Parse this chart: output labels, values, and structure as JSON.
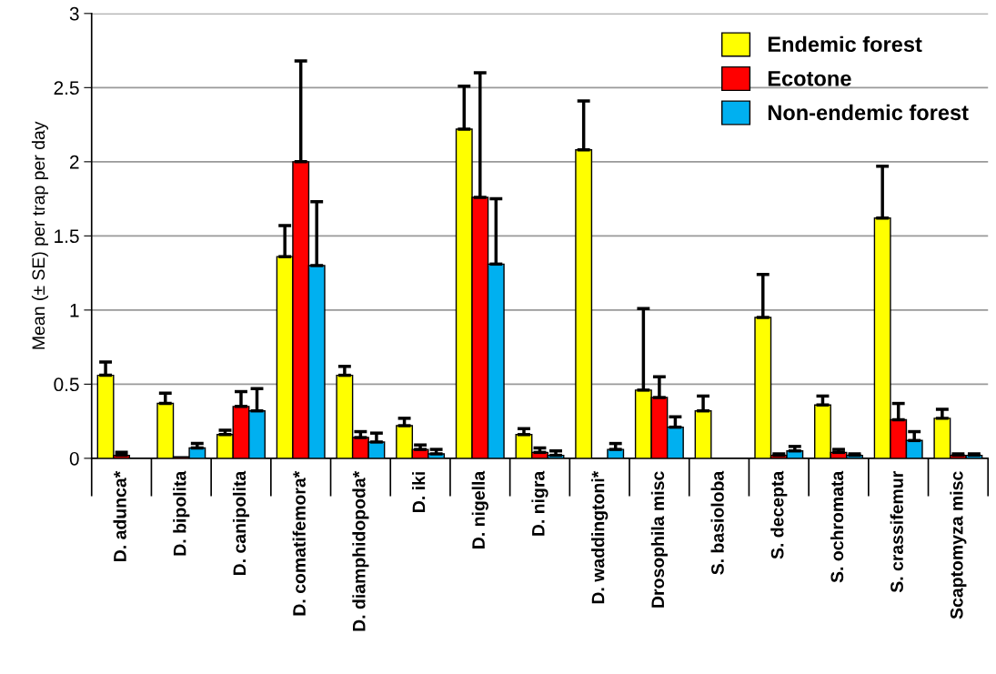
{
  "chart_data": {
    "type": "bar",
    "ylabel": "Mean (± SE) per trap per day",
    "categories": [
      "D. adunca*",
      "D. bipolita",
      "D. canipolita",
      "D. comatifemora*",
      "D. diamphidopoda*",
      "D. iki",
      "D. nigella",
      "D. nigra",
      "D. waddingtoni*",
      "Drosophila misc",
      "S. basioloba",
      "S. decepta",
      "S. ochromata",
      "S. crassifemur",
      "Scaptomyza misc"
    ],
    "series": [
      {
        "name": "Endemic forest",
        "color": "#ffff00",
        "values": [
          0.56,
          0.37,
          0.16,
          1.36,
          0.56,
          0.22,
          2.22,
          0.16,
          2.08,
          0.46,
          0.32,
          0.95,
          0.36,
          1.62,
          0.27
        ],
        "errors": [
          [
            0.56,
            0.65
          ],
          [
            0.37,
            0.44
          ],
          [
            0.16,
            0.19
          ],
          [
            1.36,
            1.57
          ],
          [
            0.56,
            0.62
          ],
          [
            0.22,
            0.27
          ],
          [
            2.22,
            2.51
          ],
          [
            0.16,
            0.2
          ],
          [
            2.08,
            2.41
          ],
          [
            0.46,
            1.01
          ],
          [
            0.32,
            0.42
          ],
          [
            0.95,
            1.24
          ],
          [
            0.36,
            0.42
          ],
          [
            1.62,
            1.97
          ],
          [
            0.27,
            0.33
          ]
        ]
      },
      {
        "name": "Ecotone",
        "color": "#ff0000",
        "values": [
          0.02,
          0.01,
          0.35,
          2.0,
          0.14,
          0.06,
          1.76,
          0.04,
          null,
          0.41,
          null,
          0.02,
          0.04,
          0.26,
          0.02
        ],
        "errors": [
          [
            0.02,
            0.04
          ],
          null,
          [
            0.35,
            0.45
          ],
          [
            2.0,
            2.68
          ],
          [
            0.14,
            0.18
          ],
          [
            0.06,
            0.09
          ],
          [
            1.76,
            2.6
          ],
          [
            0.04,
            0.07
          ],
          null,
          [
            0.41,
            0.55
          ],
          null,
          [
            0.02,
            0.03
          ],
          [
            0.04,
            0.06
          ],
          [
            0.26,
            0.37
          ],
          [
            0.02,
            0.03
          ]
        ]
      },
      {
        "name": "Non-endemic forest",
        "color": "#00b0f0",
        "values": [
          null,
          0.07,
          0.32,
          1.3,
          0.11,
          0.03,
          1.31,
          0.02,
          0.06,
          0.21,
          null,
          0.05,
          0.02,
          0.12,
          0.02
        ],
        "errors": [
          null,
          [
            0.07,
            0.1
          ],
          [
            0.32,
            0.47
          ],
          [
            1.3,
            1.73
          ],
          [
            0.11,
            0.17
          ],
          [
            0.03,
            0.06
          ],
          [
            1.31,
            1.75
          ],
          [
            0.02,
            0.05
          ],
          [
            0.06,
            0.1
          ],
          [
            0.21,
            0.28
          ],
          null,
          [
            0.05,
            0.08
          ],
          [
            0.02,
            0.03
          ],
          [
            0.12,
            0.18
          ],
          [
            0.02,
            0.03
          ]
        ]
      }
    ],
    "ylim": [
      0,
      3
    ],
    "yticks": [
      0,
      0.5,
      1,
      1.5,
      2,
      2.5,
      3
    ],
    "grid": "y",
    "legend": "top right"
  }
}
